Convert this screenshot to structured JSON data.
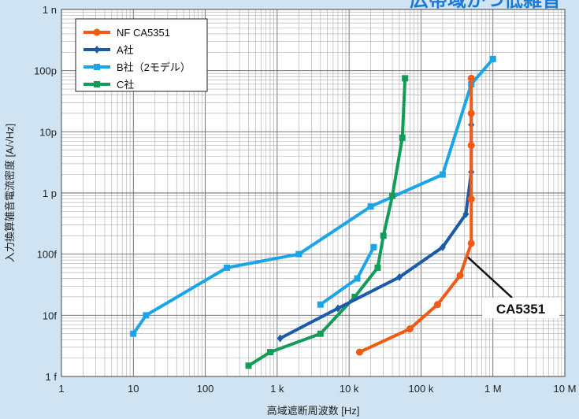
{
  "chart_data": {
    "type": "line",
    "title": "広帯域かつ低雑音",
    "xlabel": "高域遮断周波数 [Hz]",
    "ylabel": "入力換算雑音電流密度 [A/√Hz]",
    "xscale": "log",
    "yscale": "log",
    "xlim": [
      1,
      10000000
    ],
    "ylim": [
      1e-15,
      1e-09
    ],
    "grid": true,
    "legend_position": "top-left",
    "x_ticks": [
      {
        "value": 1,
        "label": "1"
      },
      {
        "value": 10,
        "label": "10"
      },
      {
        "value": 100,
        "label": "100"
      },
      {
        "value": 1000,
        "label": "1 k"
      },
      {
        "value": 10000,
        "label": "10 k"
      },
      {
        "value": 100000,
        "label": "100 k"
      },
      {
        "value": 1000000,
        "label": "1 M"
      },
      {
        "value": 10000000,
        "label": "10 M"
      }
    ],
    "y_ticks": [
      {
        "value": 1e-15,
        "label": "1 f"
      },
      {
        "value": 1e-14,
        "label": "10f"
      },
      {
        "value": 1e-13,
        "label": "100f"
      },
      {
        "value": 1e-12,
        "label": "1 p"
      },
      {
        "value": 1e-11,
        "label": "10p"
      },
      {
        "value": 1e-10,
        "label": "100p"
      },
      {
        "value": 1e-09,
        "label": "1 n"
      }
    ],
    "series": [
      {
        "name": "NF CA5351",
        "color": "#f05a14",
        "marker": "circle",
        "x": [
          14000,
          70000,
          170000,
          350000,
          500000,
          500000,
          500000,
          500000,
          500000
        ],
        "y": [
          2.5e-15,
          6e-15,
          1.5e-14,
          4.5e-14,
          1.5e-13,
          8e-13,
          6e-12,
          2e-11,
          7.5e-11
        ]
      },
      {
        "name": "A社",
        "color": "#1a5aa8",
        "marker": "diamond",
        "x": [
          1100,
          7000,
          50000,
          200000,
          420000,
          500000,
          500000,
          500000
        ],
        "y": [
          4.2e-15,
          1.3e-14,
          4.2e-14,
          1.3e-13,
          4.5e-13,
          2.2e-12,
          1.3e-11,
          2e-11
        ]
      },
      {
        "name": "B社（2モデル）",
        "color": "#1aa5e8",
        "marker": "square",
        "x": [
          10,
          15,
          200,
          2000,
          20000,
          200000,
          500000,
          1000000
        ],
        "y": [
          5e-15,
          1e-14,
          6e-14,
          1e-13,
          6e-13,
          2e-12,
          6e-11,
          1.55e-10
        ]
      },
      {
        "name": "",
        "color": "#1aa5e8",
        "marker": "square",
        "x": [
          4000,
          13000,
          22000
        ],
        "y": [
          1.5e-14,
          4e-14,
          1.3e-13
        ]
      },
      {
        "name": "C社",
        "color": "#139b58",
        "marker": "square",
        "x": [
          400,
          800,
          4000,
          12000,
          25000,
          30000,
          40000,
          55000,
          60000
        ],
        "y": [
          1.5e-15,
          2.5e-15,
          5e-15,
          2e-14,
          6e-14,
          2e-13,
          9e-13,
          8e-12,
          7.5e-11
        ]
      }
    ],
    "annotations": [
      {
        "text": "CA5351"
      }
    ]
  }
}
